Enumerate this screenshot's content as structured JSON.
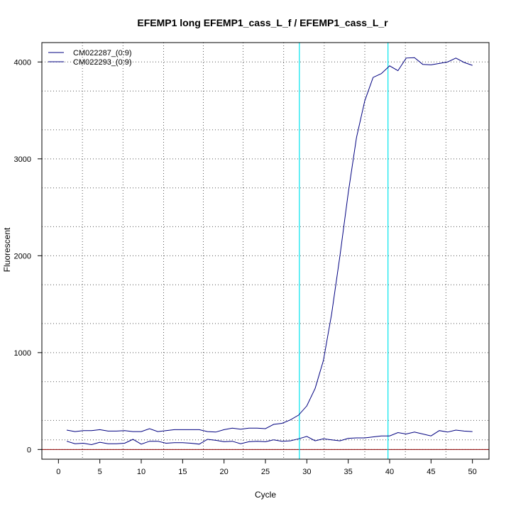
{
  "chart_data": {
    "type": "line",
    "title": "EFEMP1 long EFEMP1_cass_L_f / EFEMP1_cass_L_r",
    "xlabel": "Cycle",
    "ylabel": "Fluorescent",
    "xlim": [
      -2,
      52
    ],
    "ylim": [
      -100,
      4200
    ],
    "x_ticks": [
      0,
      5,
      10,
      15,
      20,
      25,
      30,
      35,
      40,
      45,
      50
    ],
    "y_ticks": [
      0,
      1000,
      2000,
      3000,
      4000
    ],
    "x_minor_grid": [
      2.9,
      7.8,
      12.7,
      17.5,
      22.3,
      27.2,
      32.1,
      37,
      41.9,
      46.8
    ],
    "y_grid": [
      0,
      100,
      300,
      700,
      1000,
      1300,
      1700,
      2000,
      2300,
      2700,
      3000,
      3300,
      3700,
      4000
    ],
    "grid": true,
    "grid_style": "dotted",
    "baseline": 0,
    "baseline_color": "#8b0000",
    "threshold_lines_x": [
      29.1,
      39.8
    ],
    "threshold_color": "#00e5ee",
    "line_color": "#000080",
    "legend_position": "top-left",
    "series": [
      {
        "name": "CM022287_(0:9)",
        "color": "#000080",
        "x": [
          1,
          2,
          3,
          4,
          5,
          6,
          7,
          8,
          9,
          10,
          11,
          12,
          13,
          14,
          15,
          16,
          17,
          18,
          19,
          20,
          21,
          22,
          23,
          24,
          25,
          26,
          27,
          28,
          29,
          30,
          31,
          32,
          33,
          34,
          35,
          36,
          37,
          38,
          39,
          40,
          41,
          42,
          43,
          44,
          45,
          46,
          47,
          48,
          49,
          50
        ],
        "values": [
          200,
          185,
          195,
          195,
          205,
          190,
          190,
          195,
          185,
          185,
          215,
          185,
          195,
          205,
          205,
          205,
          205,
          185,
          180,
          205,
          220,
          210,
          220,
          220,
          215,
          260,
          270,
          305,
          355,
          450,
          630,
          920,
          1400,
          2000,
          2650,
          3220,
          3600,
          3840,
          3880,
          3960,
          3910,
          4040,
          4045,
          3975,
          3970,
          3985,
          4000,
          4040,
          3995,
          3965
        ]
      },
      {
        "name": "CM022293_(0:9)",
        "color": "#000080",
        "x": [
          1,
          2,
          3,
          4,
          5,
          6,
          7,
          8,
          9,
          10,
          11,
          12,
          13,
          14,
          15,
          16,
          17,
          18,
          19,
          20,
          21,
          22,
          23,
          24,
          25,
          26,
          27,
          28,
          29,
          30,
          31,
          32,
          33,
          34,
          35,
          36,
          37,
          38,
          39,
          40,
          41,
          42,
          43,
          44,
          45,
          46,
          47,
          48,
          49,
          50
        ],
        "values": [
          85,
          60,
          65,
          50,
          75,
          60,
          60,
          65,
          105,
          55,
          85,
          85,
          65,
          70,
          70,
          65,
          55,
          105,
          95,
          80,
          85,
          60,
          80,
          85,
          80,
          100,
          85,
          90,
          110,
          135,
          90,
          110,
          100,
          90,
          115,
          120,
          120,
          130,
          140,
          140,
          175,
          160,
          180,
          160,
          140,
          195,
          180,
          200,
          190,
          185
        ]
      }
    ]
  }
}
